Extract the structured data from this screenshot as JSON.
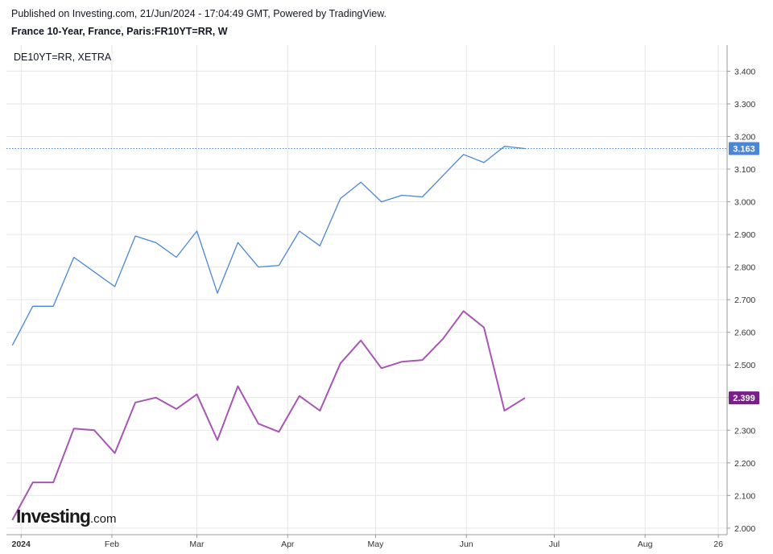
{
  "header": {
    "published": "Published on Investing.com, 21/Jun/2024 - 17:04:49 GMT, Powered by TradingView.",
    "title": "France 10-Year, France, Paris:FR10YT=RR, W",
    "legend": "DE10YT=RR, XETRA"
  },
  "logo": {
    "main": "Investing",
    "suffix": ".com"
  },
  "colors": {
    "france": "#4a86d8",
    "germany": "#a855b5",
    "germany_tag": "#7a1f8a",
    "grid": "#e6e6e6"
  },
  "chart_data": {
    "type": "line",
    "x_start": "2023-12-29",
    "x_step_days": 7,
    "xlim": [
      "2023-12-27",
      "2024-08-29"
    ],
    "ylim": [
      1.98,
      3.48
    ],
    "x_tick_labels": [
      {
        "date": "2024-01-01",
        "label": "2024"
      },
      {
        "date": "2024-02-01",
        "label": "Feb"
      },
      {
        "date": "2024-03-01",
        "label": "Mar"
      },
      {
        "date": "2024-04-01",
        "label": "Apr"
      },
      {
        "date": "2024-05-01",
        "label": "May"
      },
      {
        "date": "2024-06-01",
        "label": "Jun"
      },
      {
        "date": "2024-07-01",
        "label": "Jul"
      },
      {
        "date": "2024-08-01",
        "label": "Aug"
      },
      {
        "date": "2024-08-26",
        "label": "26"
      }
    ],
    "y_ticks": [
      2.0,
      2.1,
      2.2,
      2.3,
      2.4,
      2.5,
      2.6,
      2.7,
      2.8,
      2.9,
      3.0,
      3.1,
      3.2,
      3.3,
      3.4
    ],
    "y_tick_labels": [
      "2.000",
      "2.100",
      "2.200",
      "2.300",
      "2.400",
      "2.500",
      "2.600",
      "2.700",
      "2.800",
      "2.900",
      "3.000",
      "3.100",
      "3.200",
      "3.300",
      "3.400"
    ],
    "series": [
      {
        "values": [
          2.56,
          2.68,
          2.68,
          2.83,
          2.785,
          2.74,
          2.895,
          2.875,
          2.83,
          2.91,
          2.72,
          2.875,
          2.8,
          2.805,
          2.91,
          2.865,
          3.01,
          3.06,
          3.0,
          3.02,
          3.015,
          3.08,
          3.145,
          3.12,
          3.17,
          3.163
        ],
        "last_label": "3.163"
      },
      {
        "values": [
          2.025,
          2.14,
          2.14,
          2.305,
          2.3,
          2.23,
          2.385,
          2.4,
          2.365,
          2.41,
          2.27,
          2.435,
          2.32,
          2.295,
          2.405,
          2.36,
          2.505,
          2.575,
          2.49,
          2.51,
          2.515,
          2.58,
          2.665,
          2.615,
          2.36,
          2.399
        ],
        "last_label": "2.399"
      }
    ]
  }
}
